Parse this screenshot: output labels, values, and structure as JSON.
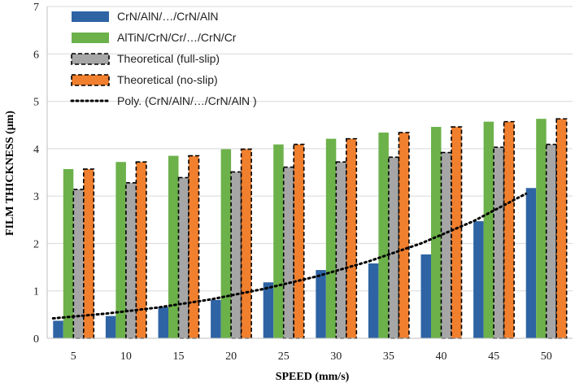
{
  "chart_data": {
    "type": "bar",
    "title": "",
    "xlabel": "SPEED (mm/s)",
    "ylabel": "FILM THICKNESS (μm)",
    "ylim": [
      0,
      7
    ],
    "yticks": [
      "0",
      "1",
      "2",
      "3",
      "4",
      "5",
      "6",
      "7"
    ],
    "grid": "horizontal",
    "legend_position": "top-left",
    "categories": [
      "5",
      "10",
      "15",
      "20",
      "25",
      "30",
      "35",
      "40",
      "45",
      "50"
    ],
    "series": [
      {
        "name": "CrN/AlN/…/CrN/AlN",
        "color": "#2e64a4",
        "style": "solid",
        "values": [
          0.37,
          0.47,
          0.66,
          0.81,
          1.18,
          1.44,
          1.58,
          1.77,
          2.47,
          3.17
        ]
      },
      {
        "name": "AlTiN/CrN/Cr/…/CrN/Cr",
        "color": "#6cb14a",
        "style": "solid",
        "values": [
          3.57,
          3.72,
          3.85,
          3.99,
          4.09,
          4.21,
          4.34,
          4.46,
          4.57,
          4.63
        ]
      },
      {
        "name": "Theoretical (full-slip)",
        "color": "#a6a6a6",
        "style": "dashed",
        "values": [
          3.14,
          3.28,
          3.39,
          3.51,
          3.61,
          3.72,
          3.82,
          3.92,
          4.03,
          4.09
        ]
      },
      {
        "name": "Theoretical (no-slip)",
        "color": "#f07f2e",
        "style": "dashed",
        "values": [
          3.57,
          3.72,
          3.85,
          3.99,
          4.09,
          4.21,
          4.34,
          4.46,
          4.57,
          4.63
        ]
      }
    ],
    "trendline": {
      "name": "Poly. (CrN/AlN/…/CrN/AlN )",
      "color": "#000000",
      "style": "dotted",
      "values": [
        0.42,
        0.52,
        0.65,
        0.82,
        1.04,
        1.3,
        1.62,
        2.0,
        2.47,
        3.05
      ]
    }
  }
}
